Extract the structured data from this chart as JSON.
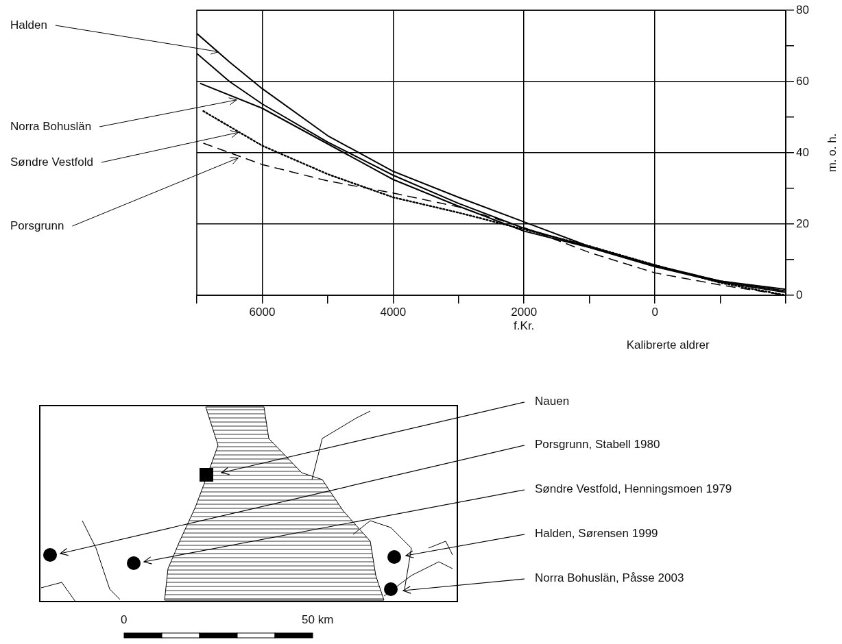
{
  "chart_data": {
    "type": "line",
    "xlabel": "Kalibrerte aldrer",
    "ylabel": "m. o. h.",
    "xlim": [
      -7000,
      2000
    ],
    "xticks": [
      {
        "value": -7000,
        "label": null
      },
      {
        "value": -6000,
        "label": "6000"
      },
      {
        "value": -5000,
        "label": null
      },
      {
        "value": -4000,
        "label": "4000"
      },
      {
        "value": -3000,
        "label": null
      },
      {
        "value": -2000,
        "label": "2000 f.Kr."
      },
      {
        "value": -1000,
        "label": null
      },
      0,
      {
        "value": 1000,
        "label": null
      },
      {
        "value": 2000,
        "label": null
      }
    ],
    "ylim": [
      0,
      80
    ],
    "yticks": [
      0,
      {
        "value": 10,
        "label": null
      },
      20,
      {
        "value": 30,
        "label": null
      },
      40,
      {
        "value": 50,
        "label": null
      },
      60,
      {
        "value": 70,
        "label": null
      },
      80
    ],
    "grid": true,
    "legend": false,
    "marker": "none",
    "series": [
      {
        "name": "Halden",
        "color": "#000000",
        "line_style": "solid",
        "x": [
          -7000,
          -6500,
          -6000,
          -5000,
          -4000,
          -3000,
          -2000,
          -1000,
          0,
          1000,
          2000
        ],
        "values": [
          73.5,
          65.5,
          58,
          44.8,
          34.8,
          27.5,
          20.6,
          13.7,
          8.4,
          4,
          1.7
        ]
      },
      {
        "color": "#000000",
        "line_style": "solid",
        "x": [
          -7000,
          -6500,
          -6000,
          -5000,
          -4000,
          -3000,
          -2000,
          -1000,
          0,
          1000,
          2000
        ],
        "values": [
          67.9,
          60,
          53.7,
          43,
          33.7,
          25.8,
          18.8,
          13.5,
          8.2,
          4,
          1.2
        ]
      },
      {
        "name": "Norra Bohuslän",
        "color": "#000000",
        "line_style": "solid",
        "x": [
          -6950,
          -6000,
          -5000,
          -4000,
          -3000,
          -2000,
          -1000,
          0,
          1000,
          2000
        ],
        "values": [
          59.5,
          52.5,
          42.5,
          32.5,
          25,
          18,
          13.4,
          8,
          3.7,
          0.8
        ]
      },
      {
        "name": "Søndre Vestfold",
        "color": "#000000",
        "line_style": "dotted",
        "x": [
          -6900,
          -6000,
          -5000,
          -4000,
          -3000,
          -2000,
          -1000,
          0,
          1000,
          2000
        ],
        "values": [
          51.7,
          42,
          34,
          27.5,
          23.2,
          18.5,
          13.8,
          8.5,
          3.5,
          0
        ]
      },
      {
        "name": "Porsgrunn",
        "color": "#000000",
        "line_style": "dashed",
        "x": [
          -6900,
          -6000,
          -5000,
          -4000,
          -3000,
          -2000,
          -1000,
          0,
          1000,
          2000
        ],
        "values": [
          42.7,
          36.7,
          32.1,
          28.7,
          24.8,
          19,
          12,
          6.3,
          2.9,
          0
        ]
      }
    ],
    "annotations": [
      "Nauen",
      "Porsgrunn, Stabell 1980",
      "Søndre Vestfold, Henningsmoen 1979",
      "Halden, Sørensen 1999",
      "Norra Bohuslän, Påsse 2003",
      "0",
      "50 km"
    ]
  }
}
